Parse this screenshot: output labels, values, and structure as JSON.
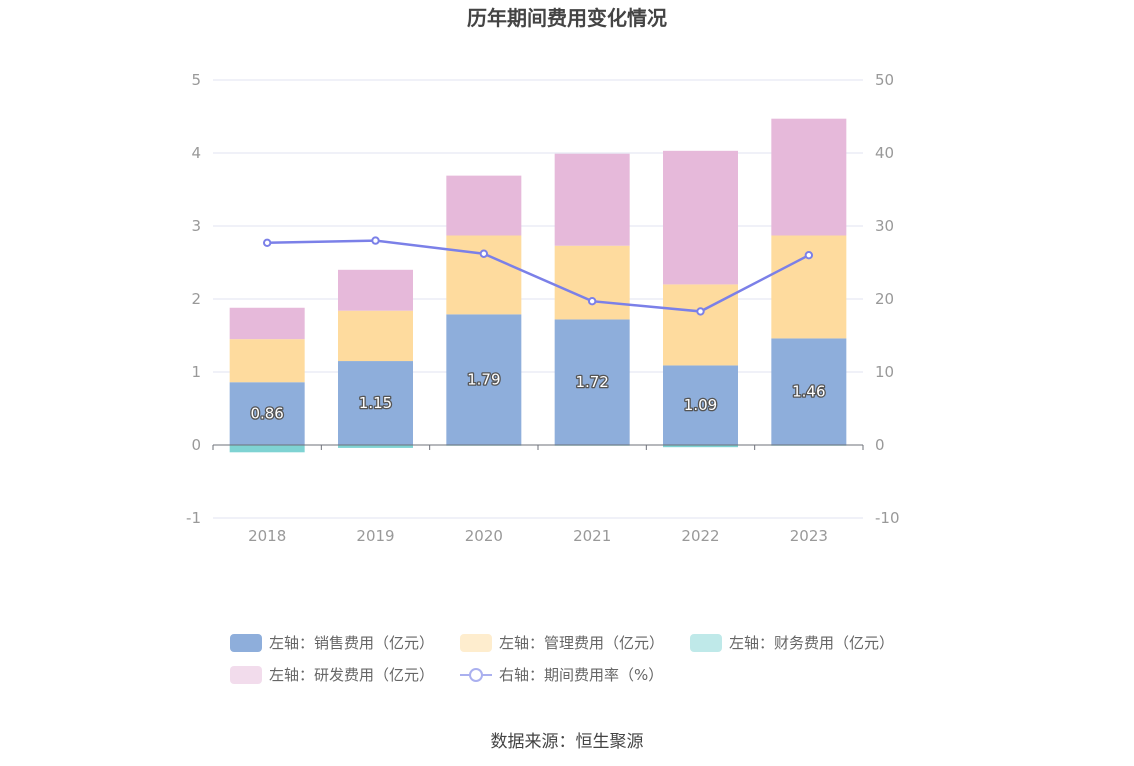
{
  "chart_data": {
    "type": "bar",
    "title": "历年期间费用变化情况",
    "categories": [
      "2018",
      "2019",
      "2020",
      "2021",
      "2022",
      "2023"
    ],
    "stacked": true,
    "series": [
      {
        "name": "左轴：销售费用（亿元）",
        "axis": "left",
        "values": [
          0.86,
          1.15,
          1.79,
          1.72,
          1.09,
          1.46
        ],
        "color": "#8eaedb",
        "show_labels": true
      },
      {
        "name": "左轴：管理费用（亿元）",
        "axis": "left",
        "values": [
          0.59,
          0.69,
          1.08,
          1.01,
          1.11,
          1.41
        ],
        "color": "#fedb9e",
        "show_labels": false
      },
      {
        "name": "左轴：财务费用（亿元）",
        "axis": "left",
        "values": [
          -0.1,
          -0.04,
          -0.01,
          -0.01,
          -0.03,
          -0.01
        ],
        "color": "#7fd3d3",
        "show_labels": false
      },
      {
        "name": "左轴：研发费用（亿元）",
        "axis": "left",
        "values": [
          0.43,
          0.56,
          0.82,
          1.26,
          1.83,
          1.6
        ],
        "color": "#e6b9da",
        "show_labels": false
      }
    ],
    "line_series": [
      {
        "name": "右轴：期间费用率（%）",
        "axis": "right",
        "type": "line",
        "values": [
          27.7,
          28.0,
          26.2,
          19.7,
          18.3,
          26.0
        ],
        "color": "#7b80e8"
      }
    ],
    "yaxis_left": {
      "min": -1,
      "max": 5,
      "ticks": [
        "-1",
        "0",
        "1",
        "2",
        "3",
        "4",
        "5"
      ]
    },
    "yaxis_right": {
      "min": -10,
      "max": 50,
      "ticks": [
        "-10",
        "0",
        "10",
        "20",
        "30",
        "40",
        "50"
      ]
    },
    "grid": true,
    "legend_position": "bottom"
  },
  "source": "数据来源：恒生聚源"
}
